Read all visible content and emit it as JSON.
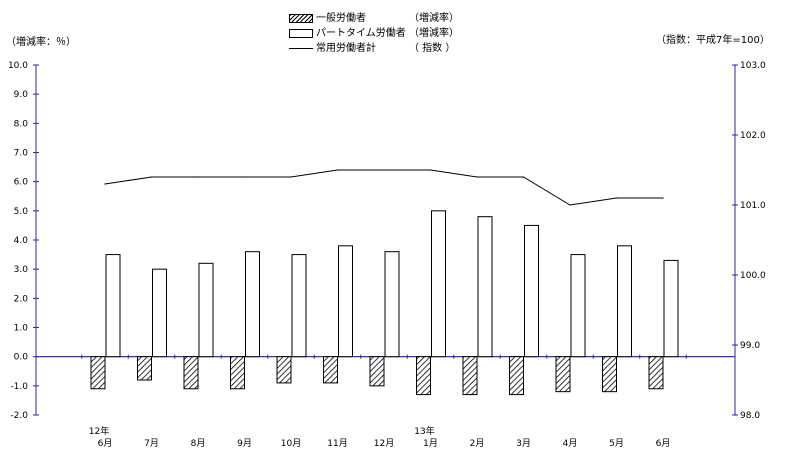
{
  "legend": {
    "general": {
      "name": "一般労働者",
      "tag": "（増減率）"
    },
    "parttime": {
      "name": "パートタイム労働者",
      "tag": "（増減率）"
    },
    "regular": {
      "name": "常用労働者計",
      "tag": "（ 指数 ）"
    }
  },
  "left_axis_title": "（増減率：％）",
  "right_axis_title": "（指数：平成7年=100）",
  "chart_data": {
    "type": "bar",
    "categories": [
      "6月",
      "7月",
      "8月",
      "9月",
      "10月",
      "11月",
      "12月",
      "1月",
      "2月",
      "3月",
      "4月",
      "5月",
      "6月"
    ],
    "year_labels": [
      "12年",
      "",
      "",
      "",
      "",
      "",
      "",
      "13年",
      "",
      "",
      "",
      "",
      ""
    ],
    "series": [
      {
        "name": "一般労働者",
        "axis": "left",
        "kind": "bar",
        "pattern": "hatch",
        "values": [
          -1.1,
          -0.8,
          -1.1,
          -1.1,
          -0.9,
          -0.9,
          -1.0,
          -1.3,
          -1.3,
          -1.3,
          -1.2,
          -1.2,
          -1.1
        ]
      },
      {
        "name": "パートタイム労働者",
        "axis": "left",
        "kind": "bar",
        "pattern": "outline",
        "values": [
          3.5,
          3.0,
          3.2,
          3.6,
          3.5,
          3.8,
          3.6,
          5.0,
          4.8,
          4.5,
          3.5,
          3.8,
          3.3
        ]
      },
      {
        "name": "常用労働者計",
        "axis": "right",
        "kind": "line",
        "values": [
          101.3,
          101.4,
          101.4,
          101.4,
          101.4,
          101.5,
          101.5,
          101.5,
          101.4,
          101.4,
          101.0,
          101.1,
          101.1
        ]
      }
    ],
    "left_axis": {
      "ylim": [
        -2.0,
        10.0
      ],
      "ticks": [
        "10.0",
        "9.0",
        "8.0",
        "7.0",
        "6.0",
        "5.0",
        "4.0",
        "3.0",
        "2.0",
        "1.0",
        "0.0",
        "-1.0",
        "-2.0"
      ]
    },
    "right_axis": {
      "ylim": [
        98.0,
        103.0
      ],
      "ticks": [
        "103.0",
        "102.0",
        "101.0",
        "100.0",
        "99.0",
        "98.0"
      ]
    },
    "grid": false,
    "legend_position": "top-center",
    "colors": {
      "axis": "#2b2b9a",
      "zero_line": "#1f1f8f",
      "bar_stroke": "#000000",
      "line": "#000000"
    }
  }
}
